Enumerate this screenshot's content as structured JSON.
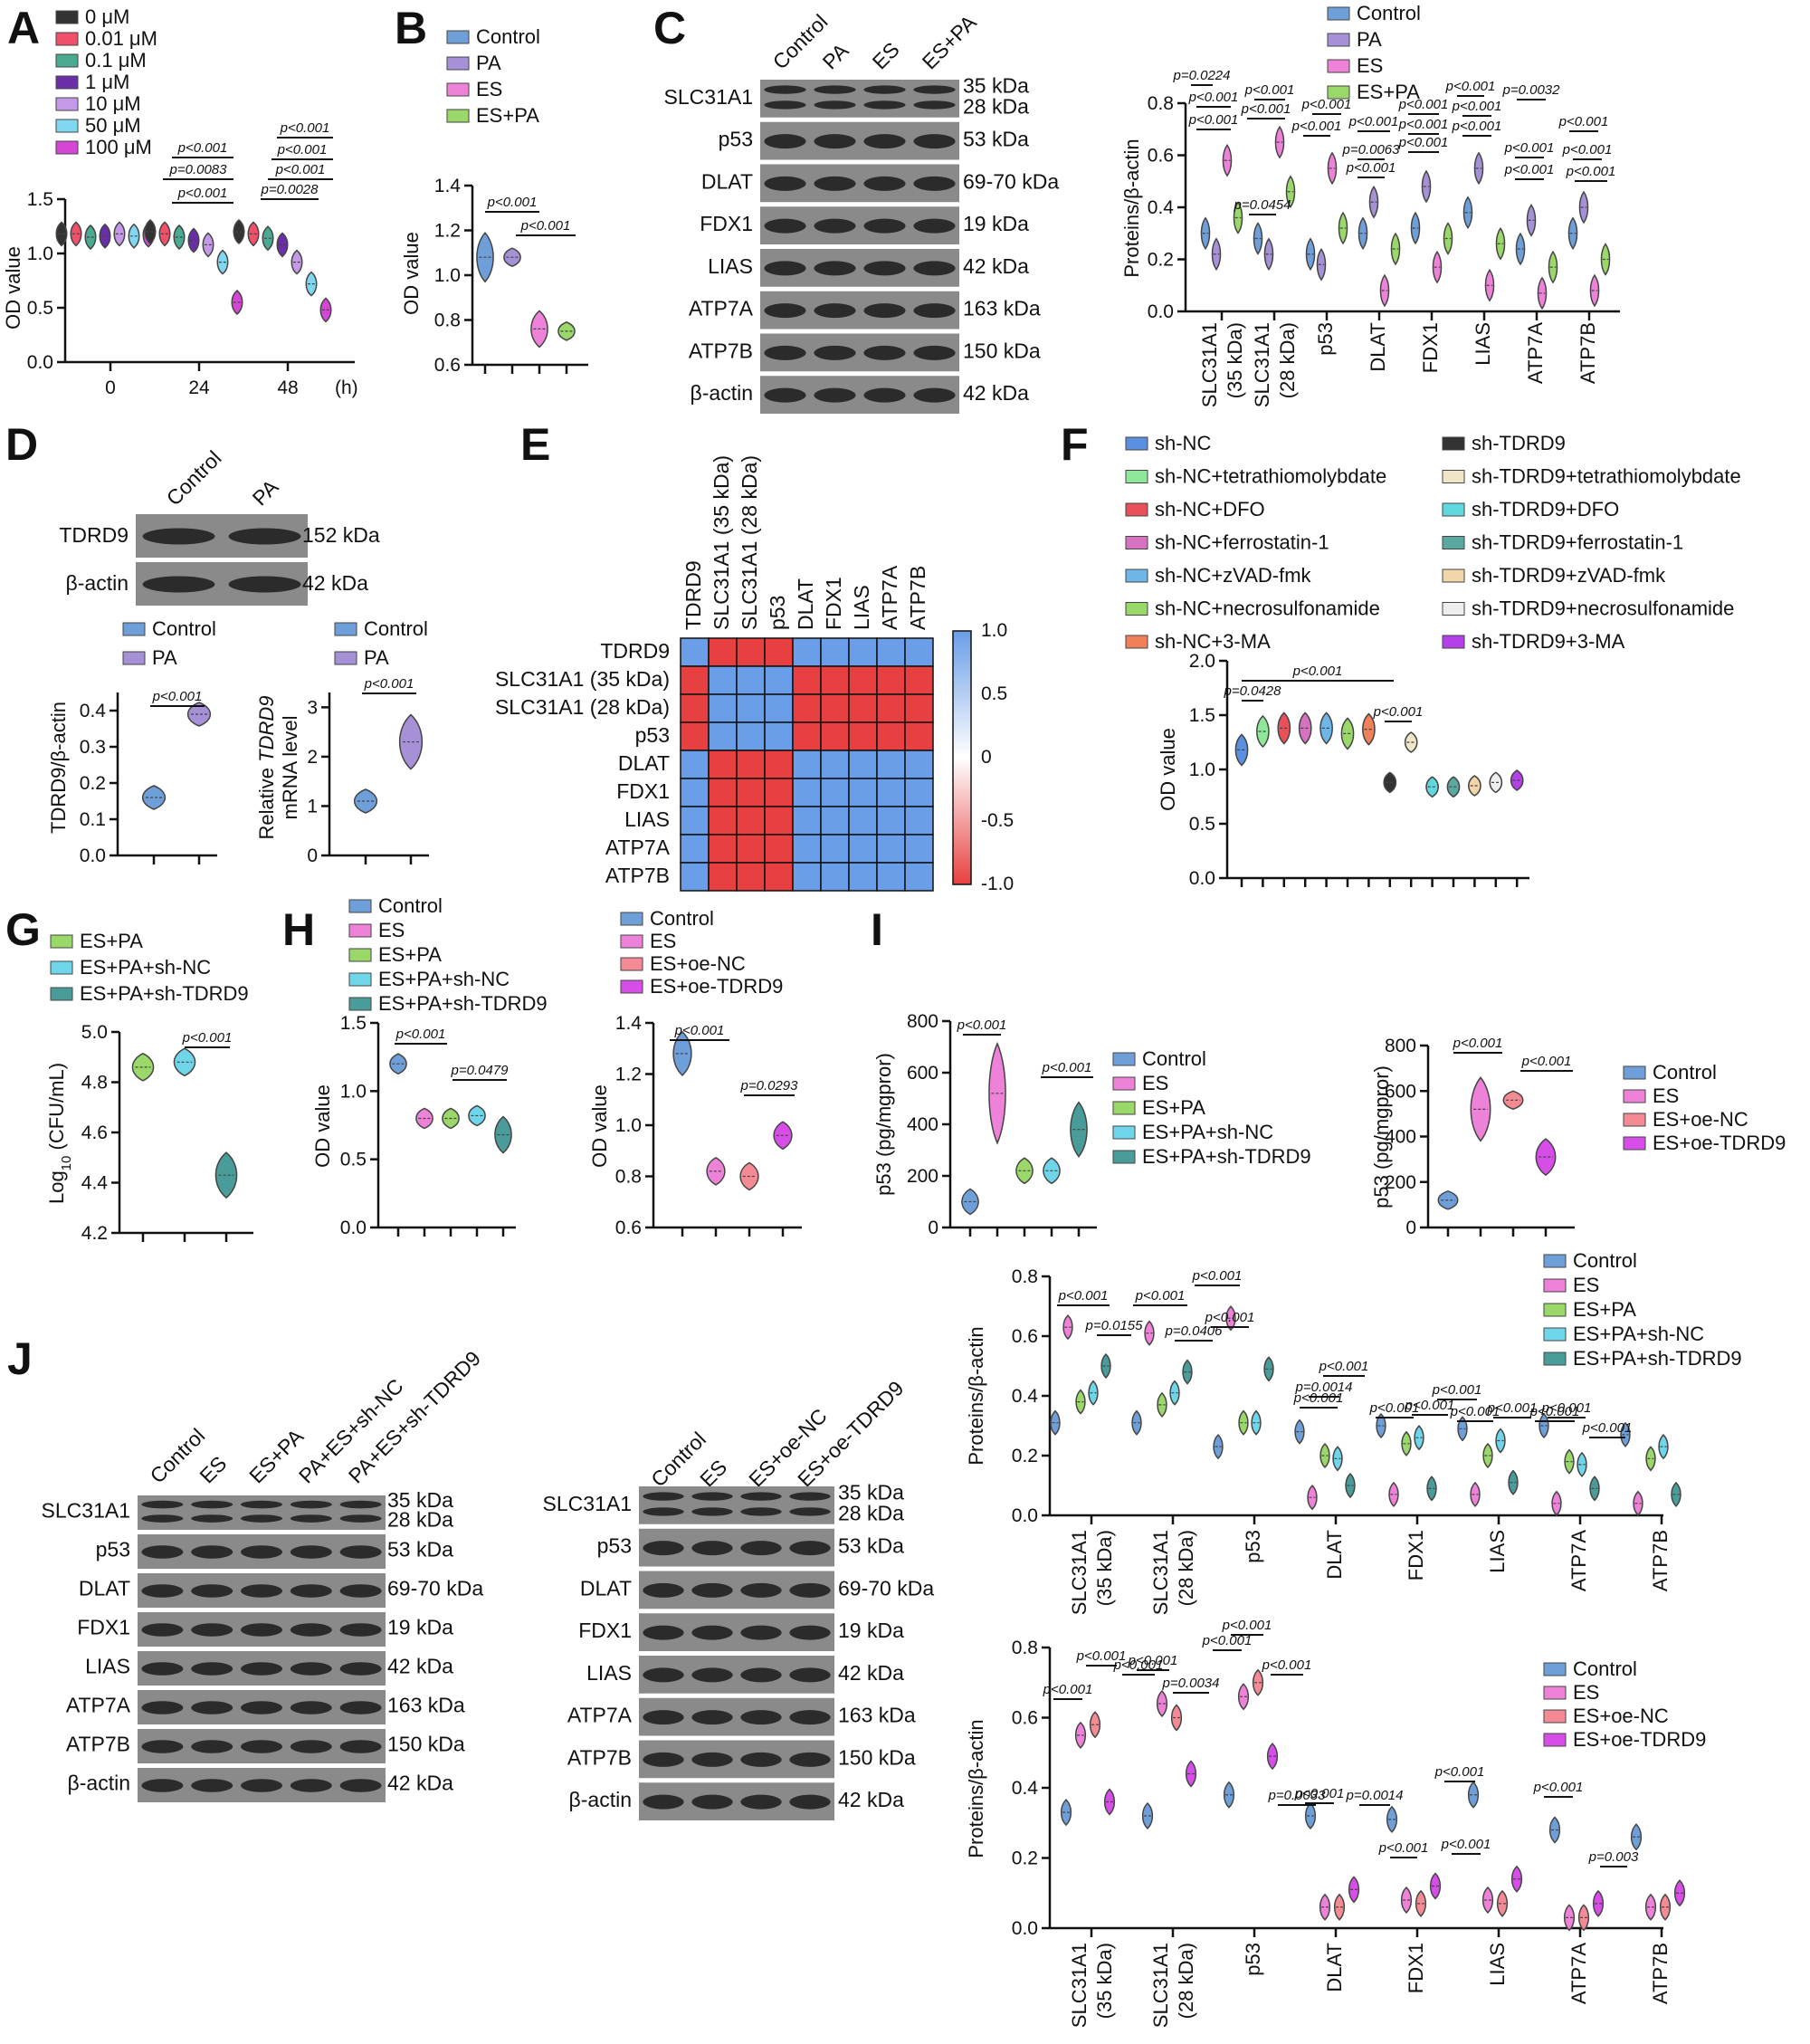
{
  "colors": {
    "blue": "#6f9fd8",
    "lavender": "#a690d6",
    "pink": "#ee82d9",
    "green": "#9ad86a",
    "cyan": "#6fd6ea",
    "teal": "#4a9c9a",
    "salmon": "#f48a94",
    "magenta": "#d64de8",
    "red": "#e8505a",
    "dark": "#222222",
    "mauve": "#d772c1",
    "orange": "#f0805a",
    "heat_pos": "#6a9ee8",
    "heat_neg": "#e84040"
  },
  "panels": {
    "A": {
      "letter": "A",
      "legend": [
        "0 μM",
        "0.01 μM",
        "0.1 μM",
        "1 μM",
        "10 μM",
        "50 μM",
        "100 μM"
      ],
      "legend_colors": [
        "#333333",
        "#f0506a",
        "#4aaa92",
        "#6a2fa8",
        "#c49ae8",
        "#7fd8f0",
        "#d646d6"
      ],
      "ylabel": "OD value",
      "yticks": [
        "0.0",
        "0.5",
        "1.0",
        "1.5"
      ],
      "xticks": [
        "0",
        "24",
        "48"
      ],
      "xunit": "(h)",
      "pvals": [
        "p<0.001",
        "p=0.0083",
        "p<0.001",
        "p<0.001",
        "p<0.001",
        "p<0.001",
        "p=0.0028"
      ],
      "chart_data": {
        "type": "violin",
        "x": [
          0,
          24,
          48
        ],
        "series": [
          {
            "name": "0 μM",
            "values": [
              1.18,
              1.2,
              1.2
            ]
          },
          {
            "name": "0.01 μM",
            "values": [
              1.18,
              1.18,
              1.18
            ]
          },
          {
            "name": "0.1 μM",
            "values": [
              1.15,
              1.15,
              1.14
            ]
          },
          {
            "name": "1 μM",
            "values": [
              1.16,
              1.12,
              1.08
            ]
          },
          {
            "name": "10 μM",
            "values": [
              1.18,
              1.08,
              0.92
            ]
          },
          {
            "name": "50 μM",
            "values": [
              1.16,
              0.92,
              0.72
            ]
          },
          {
            "name": "100 μM",
            "values": [
              1.17,
              0.55,
              0.48
            ]
          }
        ],
        "ylabel": "OD value",
        "ylim": [
          0,
          1.5
        ]
      }
    },
    "B": {
      "letter": "B",
      "legend": [
        "Control",
        "PA",
        "ES",
        "ES+PA"
      ],
      "ylabel": "OD value",
      "yticks": [
        "0.6",
        "0.8",
        "1.0",
        "1.2",
        "1.4"
      ],
      "pvals": [
        "p<0.001",
        "p<0.001"
      ],
      "chart_data": {
        "type": "violin",
        "categories": [
          "Control",
          "PA",
          "ES",
          "ES+PA"
        ],
        "values": [
          1.08,
          1.08,
          0.76,
          0.75
        ],
        "ylim": [
          0.6,
          1.4
        ]
      }
    },
    "C": {
      "letter": "C",
      "cols": [
        "Control",
        "PA",
        "ES",
        "ES+PA"
      ],
      "rows": [
        "SLC31A1",
        "p53",
        "DLAT",
        "FDX1",
        "LIAS",
        "ATP7A",
        "ATP7B",
        "β-actin"
      ],
      "kda": [
        "35 kDa",
        "28 kDa",
        "53 kDa",
        "69-70 kDa",
        "19 kDa",
        "42 kDa",
        "163 kDa",
        "150 kDa",
        "42 kDa"
      ],
      "legend": [
        "Control",
        "PA",
        "ES",
        "ES+PA"
      ],
      "ylabel": "Proteins/β-actin",
      "yticks": [
        "0.0",
        "0.2",
        "0.4",
        "0.6",
        "0.8"
      ],
      "xcats": [
        "SLC31A1 (35 kDa)",
        "SLC31A1 (28 kDa)",
        "p53",
        "DLAT",
        "FDX1",
        "LIAS",
        "ATP7A",
        "ATP7B"
      ],
      "pvals": [
        "p=0.0224",
        "p<0.001",
        "p<0.001",
        "p=0.0454",
        "p<0.001",
        "p<0.001",
        "p<0.001",
        "p<0.001",
        "p=0.0063",
        "p<0.001",
        "p<0.001",
        "p<0.001",
        "p<0.001",
        "p<0.001",
        "p<0.001",
        "p<0.001",
        "p<0.001",
        "p=0.0032",
        "p<0.001",
        "p<0.001",
        "p<0.001",
        "p<0.001",
        "p<0.001",
        "p<0.001"
      ],
      "chart_data": {
        "type": "violin",
        "categories": [
          "SLC31A1 (35 kDa)",
          "SLC31A1 (28 kDa)",
          "p53",
          "DLAT",
          "FDX1",
          "LIAS",
          "ATP7A",
          "ATP7B"
        ],
        "series": [
          {
            "name": "Control",
            "values": [
              0.3,
              0.28,
              0.22,
              0.3,
              0.32,
              0.38,
              0.24,
              0.3
            ]
          },
          {
            "name": "PA",
            "values": [
              0.22,
              0.22,
              0.18,
              0.42,
              0.48,
              0.55,
              0.35,
              0.4
            ]
          },
          {
            "name": "ES",
            "values": [
              0.58,
              0.65,
              0.55,
              0.08,
              0.17,
              0.1,
              0.07,
              0.08
            ]
          },
          {
            "name": "ES+PA",
            "values": [
              0.36,
              0.46,
              0.32,
              0.24,
              0.28,
              0.26,
              0.17,
              0.2
            ]
          }
        ],
        "ylim": [
          0,
          0.8
        ]
      }
    },
    "D": {
      "letter": "D",
      "cols": [
        "Control",
        "PA"
      ],
      "rows": [
        "TDRD9",
        "β-actin"
      ],
      "kda": [
        "152 kDa",
        "42 kDa"
      ],
      "legend": [
        "Control",
        "PA"
      ],
      "chart1": {
        "ylabel": "TDRD9/β-actin",
        "yticks": [
          "0.0",
          "0.1",
          "0.2",
          "0.3",
          "0.4"
        ],
        "pval": "p<0.001",
        "chart_data": {
          "type": "violin",
          "categories": [
            "Control",
            "PA"
          ],
          "values": [
            0.16,
            0.39
          ],
          "ylim": [
            0,
            0.45
          ]
        }
      },
      "chart2": {
        "ylabel_a": "Relative ",
        "ylabel_b": "TDRD9",
        "ylabel_c": "mRNA level",
        "yticks": [
          "0",
          "1",
          "2",
          "3"
        ],
        "pval": "p<0.001",
        "chart_data": {
          "type": "violin",
          "categories": [
            "Control",
            "PA"
          ],
          "values": [
            1.1,
            2.3
          ],
          "ylim": [
            0,
            3.3
          ]
        }
      }
    },
    "E": {
      "letter": "E",
      "labels": [
        "TDRD9",
        "SLC31A1 (35 kDa)",
        "SLC31A1 (28 kDa)",
        "p53",
        "DLAT",
        "FDX1",
        "LIAS",
        "ATP7A",
        "ATP7B"
      ],
      "colorbar_ticks": [
        "1.0",
        "0.5",
        "0",
        "-0.5",
        "-1.0"
      ],
      "chart_data": {
        "type": "heatmap",
        "rows": [
          "TDRD9",
          "SLC31A1 (35 kDa)",
          "SLC31A1 (28 kDa)",
          "p53",
          "DLAT",
          "FDX1",
          "LIAS",
          "ATP7A",
          "ATP7B"
        ],
        "values": [
          [
            1,
            -1,
            -1,
            -1,
            1,
            1,
            1,
            1,
            1
          ],
          [
            -1,
            1,
            1,
            1,
            -1,
            -1,
            -1,
            -1,
            -1
          ],
          [
            -1,
            1,
            1,
            1,
            -1,
            -1,
            -1,
            -1,
            -1
          ],
          [
            -1,
            1,
            1,
            1,
            -1,
            -1,
            -1,
            -1,
            -1
          ],
          [
            1,
            -1,
            -1,
            -1,
            1,
            1,
            1,
            1,
            1
          ],
          [
            1,
            -1,
            -1,
            -1,
            1,
            1,
            1,
            1,
            1
          ],
          [
            1,
            -1,
            -1,
            -1,
            1,
            1,
            1,
            1,
            1
          ],
          [
            1,
            -1,
            -1,
            -1,
            1,
            1,
            1,
            1,
            1
          ],
          [
            1,
            -1,
            -1,
            -1,
            1,
            1,
            1,
            1,
            1
          ]
        ],
        "zlim": [
          -1,
          1
        ]
      }
    },
    "F": {
      "letter": "F",
      "legend_left": [
        "sh-NC",
        "sh-NC+tetrathiomolybdate",
        "sh-NC+DFO",
        "sh-NC+ferrostatin-1",
        "sh-NC+zVAD-fmk",
        "sh-NC+necrosulfonamide",
        "sh-NC+3-MA"
      ],
      "legend_right": [
        "sh-TDRD9",
        "sh-TDRD9+tetrathiomolybdate",
        "sh-TDRD9+DFO",
        "sh-TDRD9+ferrostatin-1",
        "sh-TDRD9+zVAD-fmk",
        "sh-TDRD9+necrosulfonamide",
        "sh-TDRD9+3-MA"
      ],
      "colors_left": [
        "#5b8fe0",
        "#8fe89a",
        "#e8505a",
        "#d772c1",
        "#6fb6e8",
        "#9ad86a",
        "#f0805a"
      ],
      "colors_right": [
        "#333333",
        "#efe6c8",
        "#5fd8e0",
        "#5ba8a0",
        "#f0d6a8",
        "#eeeeee",
        "#b440e8"
      ],
      "ylabel": "OD value",
      "yticks": [
        "0.0",
        "0.5",
        "1.0",
        "1.5",
        "2.0"
      ],
      "pvals": [
        "p<0.001",
        "p=0.0428",
        "p<0.001"
      ],
      "chart_data": {
        "type": "violin",
        "values": [
          1.18,
          1.35,
          1.38,
          1.38,
          1.38,
          1.33,
          1.37,
          0.88,
          1.25,
          0.84,
          0.84,
          0.85,
          0.88,
          0.9
        ],
        "ylim": [
          0,
          2.0
        ]
      }
    },
    "G": {
      "letter": "G",
      "legend": [
        "ES+PA",
        "ES+PA+sh-NC",
        "ES+PA+sh-TDRD9"
      ],
      "ylabel_pre": "Log",
      "ylabel_sub": "10",
      "ylabel_post": " (CFU/mL)",
      "yticks": [
        "4.2",
        "4.4",
        "4.6",
        "4.8",
        "5.0"
      ],
      "pval": "p<0.001",
      "chart_data": {
        "type": "violin",
        "categories": [
          "ES+PA",
          "ES+PA+sh-NC",
          "ES+PA+sh-TDRD9"
        ],
        "values": [
          4.86,
          4.88,
          4.43
        ],
        "ylim": [
          4.2,
          5.0
        ]
      }
    },
    "H": {
      "letter": "H",
      "legend": [
        "Control",
        "ES",
        "ES+PA",
        "ES+PA+sh-NC",
        "ES+PA+sh-TDRD9"
      ],
      "ylabel": "OD value",
      "yticks": [
        "0.0",
        "0.5",
        "1.0",
        "1.5"
      ],
      "pvals": [
        "p<0.001",
        "p=0.0479"
      ],
      "chart_data": {
        "type": "violin",
        "categories": [
          "Control",
          "ES",
          "ES+PA",
          "ES+PA+sh-NC",
          "ES+PA+sh-TDRD9"
        ],
        "values": [
          1.2,
          0.8,
          0.8,
          0.82,
          0.68
        ],
        "ylim": [
          0,
          1.5
        ]
      },
      "legend2": [
        "Control",
        "ES",
        "ES+oe-NC",
        "ES+oe-TDRD9"
      ],
      "yticks2": [
        "0.6",
        "0.8",
        "1.0",
        "1.2",
        "1.4"
      ],
      "pvals2": [
        "p<0.001",
        "p=0.0293"
      ],
      "chart_data2": {
        "type": "violin",
        "categories": [
          "Control",
          "ES",
          "ES+oe-NC",
          "ES+oe-TDRD9"
        ],
        "values": [
          1.28,
          0.82,
          0.8,
          0.96
        ],
        "ylim": [
          0.6,
          1.4
        ]
      }
    },
    "I": {
      "letter": "I",
      "ylabel": "p53 (pg/mgpror)",
      "yticks": [
        "0",
        "200",
        "400",
        "600",
        "800"
      ],
      "legend": [
        "Control",
        "ES",
        "ES+PA",
        "ES+PA+sh-NC",
        "ES+PA+sh-TDRD9"
      ],
      "pvals": [
        "p<0.001",
        "p<0.001"
      ],
      "chart_data": {
        "type": "violin",
        "categories": [
          "Control",
          "ES",
          "ES+PA",
          "ES+PA+sh-NC",
          "ES+PA+sh-TDRD9"
        ],
        "values": [
          100,
          520,
          220,
          220,
          380
        ],
        "ylim": [
          0,
          800
        ]
      },
      "legend2": [
        "Control",
        "ES",
        "ES+oe-NC",
        "ES+oe-TDRD9"
      ],
      "pvals2": [
        "p<0.001",
        "p<0.001"
      ],
      "chart_data2": {
        "type": "violin",
        "categories": [
          "Control",
          "ES",
          "ES+oe-NC",
          "ES+oe-TDRD9"
        ],
        "values": [
          120,
          520,
          560,
          310
        ],
        "ylim": [
          0,
          800
        ]
      }
    },
    "J": {
      "letter": "J",
      "cols1": [
        "Control",
        "ES",
        "ES+PA",
        "PA+ES+sh-NC",
        "PA+ES+sh-TDRD9"
      ],
      "cols2": [
        "Control",
        "ES",
        "ES+oe-NC",
        "ES+oe-TDRD9"
      ],
      "rows": [
        "SLC31A1",
        "p53",
        "DLAT",
        "FDX1",
        "LIAS",
        "ATP7A",
        "ATP7B",
        "β-actin"
      ],
      "kda": [
        "35 kDa",
        "28 kDa",
        "53 kDa",
        "69-70 kDa",
        "19 kDa",
        "42 kDa",
        "163 kDa",
        "150 kDa",
        "42 kDa"
      ],
      "ylabel": "Proteins/β-actin",
      "yticks": [
        "0.0",
        "0.2",
        "0.4",
        "0.6",
        "0.8"
      ],
      "xcats": [
        "SLC31A1 (35 kDa)",
        "SLC31A1 (28 kDa)",
        "p53",
        "DLAT",
        "FDX1",
        "LIAS",
        "ATP7A",
        "ATP7B"
      ],
      "legend1": [
        "Control",
        "ES",
        "ES+PA",
        "ES+PA+sh-NC",
        "ES+PA+sh-TDRD9"
      ],
      "pvals1": [
        "p<0.001",
        "p=0.0155",
        "p<0.001",
        "p=0.0406",
        "p<0.001",
        "p<0.001",
        "p=0.0014",
        "p<0.001",
        "p<0.001",
        "p<0.001",
        "p<0.001",
        "p<0.001",
        "p<0.001",
        "p<0.001",
        "p<0.001",
        "p<0.001",
        "p<0.001"
      ],
      "chart_data1": {
        "type": "violin",
        "categories": [
          "SLC31A1 (35 kDa)",
          "SLC31A1 (28 kDa)",
          "p53",
          "DLAT",
          "FDX1",
          "LIAS",
          "ATP7A",
          "ATP7B"
        ],
        "series": [
          {
            "name": "Control",
            "values": [
              0.31,
              0.31,
              0.23,
              0.28,
              0.3,
              0.29,
              0.3,
              0.27
            ]
          },
          {
            "name": "ES",
            "values": [
              0.63,
              0.61,
              0.66,
              0.06,
              0.07,
              0.07,
              0.04,
              0.04
            ]
          },
          {
            "name": "ES+PA",
            "values": [
              0.38,
              0.37,
              0.31,
              0.2,
              0.24,
              0.2,
              0.18,
              0.19
            ]
          },
          {
            "name": "ES+PA+sh-NC",
            "values": [
              0.41,
              0.41,
              0.31,
              0.19,
              0.26,
              0.25,
              0.17,
              0.23
            ]
          },
          {
            "name": "ES+PA+sh-TDRD9",
            "values": [
              0.5,
              0.48,
              0.49,
              0.1,
              0.09,
              0.11,
              0.09,
              0.07
            ]
          }
        ],
        "ylim": [
          0,
          0.8
        ]
      },
      "legend2": [
        "Control",
        "ES",
        "ES+oe-NC",
        "ES+oe-TDRD9"
      ],
      "pvals2": [
        "p<0.001",
        "p<0.001",
        "p<0.001",
        "p<0.001",
        "p=0.0034",
        "p<0.001",
        "p<0.001",
        "p<0.001",
        "p=0.0033",
        "p<0.001",
        "p=0.0014",
        "p<0.001",
        "p<0.001",
        "p<0.001",
        "p<0.001",
        "p=0.003"
      ],
      "chart_data2": {
        "type": "violin",
        "categories": [
          "SLC31A1 (35 kDa)",
          "SLC31A1 (28 kDa)",
          "p53",
          "DLAT",
          "FDX1",
          "LIAS",
          "ATP7A",
          "ATP7B"
        ],
        "series": [
          {
            "name": "Control",
            "values": [
              0.33,
              0.32,
              0.38,
              0.32,
              0.31,
              0.38,
              0.28,
              0.26
            ]
          },
          {
            "name": "ES",
            "values": [
              0.55,
              0.64,
              0.66,
              0.06,
              0.08,
              0.08,
              0.03,
              0.06
            ]
          },
          {
            "name": "ES+oe-NC",
            "values": [
              0.58,
              0.6,
              0.7,
              0.06,
              0.07,
              0.07,
              0.03,
              0.06
            ]
          },
          {
            "name": "ES+oe-TDRD9",
            "values": [
              0.36,
              0.44,
              0.49,
              0.11,
              0.12,
              0.14,
              0.07,
              0.1
            ]
          }
        ],
        "ylim": [
          0,
          0.8
        ]
      }
    }
  }
}
